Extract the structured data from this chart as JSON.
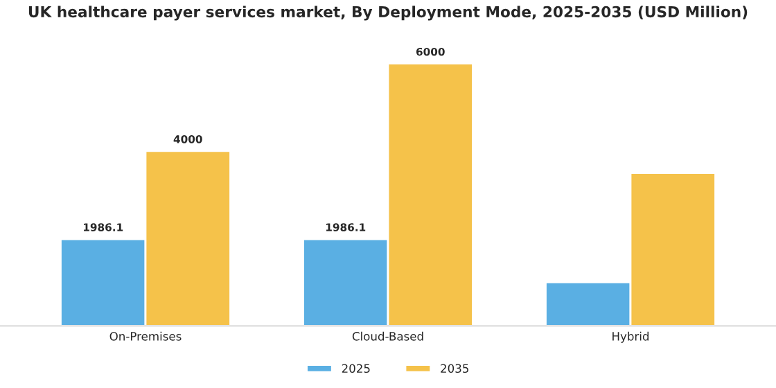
{
  "chart_data": {
    "type": "bar",
    "title": "UK healthcare payer services market, By Deployment Mode, 2025-2035 (USD Million)",
    "categories": [
      "On-Premises",
      "Cloud-Based",
      "Hybrid"
    ],
    "series": [
      {
        "name": "2025",
        "color": "#5aafe3",
        "values": [
          1986.1,
          1986.1,
          1000
        ],
        "value_labels": [
          "1986.1",
          "1986.1",
          null
        ]
      },
      {
        "name": "2035",
        "color": "#f5c24a",
        "values": [
          4000,
          6000,
          3500
        ],
        "value_labels": [
          "4000",
          "6000",
          null
        ]
      }
    ],
    "legend": "bottom",
    "grid": false
  }
}
